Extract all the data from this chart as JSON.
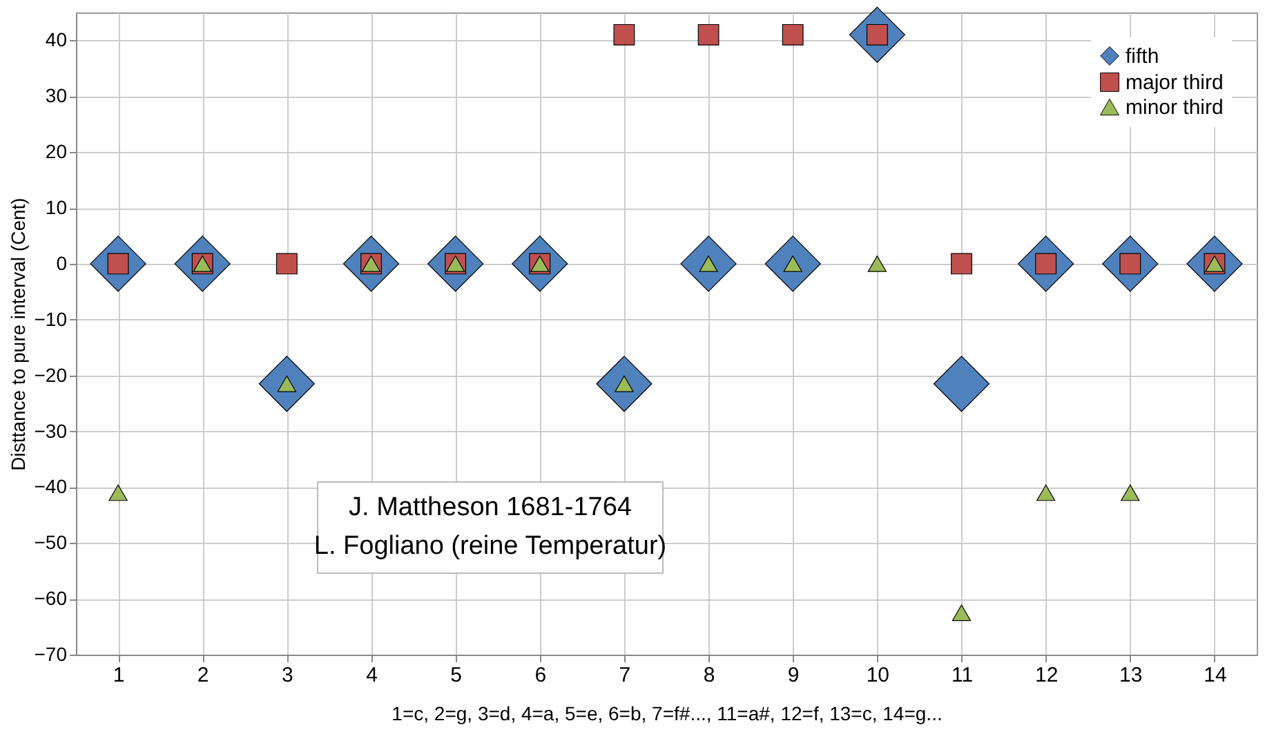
{
  "chart_data": {
    "type": "scatter",
    "x": [
      1,
      2,
      3,
      4,
      5,
      6,
      7,
      8,
      9,
      10,
      11,
      12,
      13,
      14
    ],
    "series": [
      {
        "name": "fifth",
        "color": "#4f81bd",
        "marker": "diamond",
        "values": [
          0,
          0,
          -21.5,
          0,
          0,
          0,
          -21.5,
          0,
          0,
          41,
          -21.5,
          0,
          0,
          0
        ]
      },
      {
        "name": "major third",
        "color": "#c0504d",
        "marker": "square",
        "values": [
          0,
          0,
          0,
          0,
          0,
          0,
          41,
          41,
          41,
          41,
          0,
          0,
          0,
          0
        ]
      },
      {
        "name": "minor third",
        "color": "#9bbb59",
        "marker": "triangle",
        "values": [
          -41,
          0,
          -21.5,
          0,
          0,
          0,
          -21.5,
          0,
          0,
          0,
          -62.5,
          -41,
          -41,
          0
        ]
      }
    ],
    "xlim": [
      0.5,
      14.5
    ],
    "xticks": [
      1,
      2,
      3,
      4,
      5,
      6,
      7,
      8,
      9,
      10,
      11,
      12,
      13,
      14
    ],
    "ylim": [
      -70,
      45
    ],
    "yticks": [
      -70,
      -60,
      -50,
      -40,
      -30,
      -20,
      -10,
      0,
      10,
      20,
      30,
      40
    ],
    "ylabel": "Disttance to pure interval (Cent)",
    "xlabel": "1=c, 2=g, 3=d, 4=a, 5=e, 6=b,  7=f#..., 11=a#, 12=f, 13=c, 14=g...",
    "annotations": [
      "J. Mattheson 1681-1764",
      "L. Fogliano (reine Temperatur)"
    ],
    "grid": true,
    "legend": "top right"
  }
}
